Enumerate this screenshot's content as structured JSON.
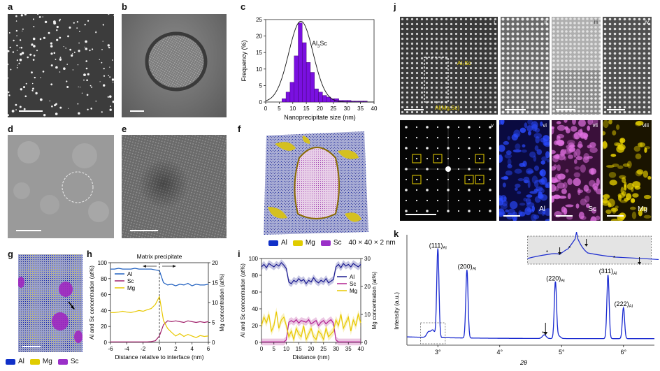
{
  "panels": {
    "a": "a",
    "b": "b",
    "c": "c",
    "d": "d",
    "e": "e",
    "f": "f",
    "g": "g",
    "h": "h",
    "i": "i",
    "j": "j",
    "k": "k"
  },
  "colors": {
    "al": "#1030c8",
    "mg": "#e0cc00",
    "sc": "#9a30c8",
    "hist": "#7a10e0",
    "xrd": "#1a2ad0",
    "annot": "#e8d000"
  },
  "panel_c": {
    "phase_label": "Al",
    "phase_sub": "3",
    "phase_label2": "Sc"
  },
  "panel_f": {
    "legend": [
      "Al",
      "Mg",
      "Sc"
    ],
    "box": "40 × 40 × 2 nm"
  },
  "panel_g": {
    "legend": [
      "Al",
      "Mg",
      "Sc"
    ]
  },
  "panel_h": {
    "top_label": "Matrix precipitate"
  },
  "panel_j": {
    "roman": [
      "i",
      "ii",
      "iii",
      "iv",
      "v",
      "vi",
      "vii",
      "viii"
    ],
    "label_al3sc": "Al₃Sc",
    "label_matrix": "Al(Mg,Sc)",
    "element_labels": [
      "Al",
      "Sc",
      "Mg"
    ]
  },
  "chart_data": [
    {
      "id": "c",
      "type": "bar",
      "title": "",
      "xlabel": "Nanoprecipitate size (nm)",
      "ylabel": "Frequency (%)",
      "xlim": [
        0,
        40
      ],
      "ylim": [
        0,
        25
      ],
      "xticks": [
        0,
        5,
        10,
        15,
        20,
        25,
        30,
        35,
        40
      ],
      "yticks": [
        0,
        5,
        10,
        15,
        20,
        25
      ],
      "bin_width": 1.5,
      "bin_starts": [
        6,
        7.5,
        9,
        10.5,
        12,
        13.5,
        15,
        16.5,
        18,
        19.5,
        21,
        22.5,
        24,
        25.5,
        27,
        28.5,
        30,
        31.5,
        33,
        34.5,
        36
      ],
      "values": [
        1,
        3,
        6,
        14,
        24,
        18,
        12,
        9,
        4,
        3,
        2,
        1.5,
        1,
        1,
        0.5,
        0.5,
        0.5,
        0.3,
        0.3,
        0.3,
        0.3
      ],
      "fit": "gaussian",
      "fit_mean": 13,
      "fit_peak": 24.5,
      "fit_sigma": 4.5
    },
    {
      "id": "h",
      "type": "line",
      "xlabel": "Distance relative to interface (nm)",
      "ylabel_left": "Al and Sc concentration (at%)",
      "ylabel_right": "Mg concentration (at%)",
      "xlim": [
        -6,
        6
      ],
      "ylim_left": [
        0,
        100
      ],
      "ylim_right": [
        0,
        20
      ],
      "xticks": [
        -6,
        -4,
        -2,
        0,
        2,
        4,
        6
      ],
      "yticks_left": [
        0,
        20,
        40,
        60,
        80,
        100
      ],
      "yticks_right": [
        0,
        5,
        10,
        15,
        20
      ],
      "x": [
        -6,
        -5.5,
        -5,
        -4.5,
        -4,
        -3.5,
        -3,
        -2.5,
        -2,
        -1.5,
        -1,
        -0.5,
        0,
        0.5,
        1,
        1.5,
        2,
        2.5,
        3,
        3.5,
        4,
        4.5,
        5,
        5.5,
        6
      ],
      "series": [
        {
          "name": "Al",
          "axis": "left",
          "color": "#2060c0",
          "values": [
            92,
            92,
            93,
            92,
            92,
            92,
            93,
            92,
            92,
            92,
            92,
            91,
            90,
            75,
            72,
            73,
            71,
            73,
            72,
            74,
            71,
            73,
            72,
            72,
            73
          ]
        },
        {
          "name": "Sc",
          "axis": "left",
          "color": "#a0206a",
          "values": [
            0.5,
            0.5,
            0.5,
            0.5,
            0.5,
            0.5,
            0.5,
            0.5,
            0.5,
            0.5,
            1,
            2,
            8,
            22,
            27,
            26,
            27,
            26,
            25,
            27,
            26,
            25,
            26,
            25,
            26
          ]
        },
        {
          "name": "Mg",
          "axis": "right",
          "color": "#e8c800",
          "values": [
            7.5,
            7.5,
            7.6,
            7.8,
            7.6,
            7.5,
            7.7,
            8.0,
            7.8,
            8.2,
            8.5,
            9.5,
            11.5,
            5.5,
            3.5,
            2.5,
            1.6,
            2.2,
            1.5,
            2.0,
            1.6,
            1.2,
            1.7,
            1.5,
            1.6
          ]
        }
      ]
    },
    {
      "id": "i",
      "type": "line",
      "xlabel": "Distance (nm)",
      "ylabel_left": "Al and Sc concentration (at%)",
      "ylabel_right": "Mg concentration (at%)",
      "xlim": [
        0,
        40
      ],
      "ylim_left": [
        0,
        100
      ],
      "ylim_right": [
        0,
        30
      ],
      "xticks": [
        0,
        5,
        10,
        15,
        20,
        25,
        30,
        35,
        40
      ],
      "yticks_left": [
        0,
        20,
        40,
        60,
        80,
        100
      ],
      "yticks_right": [
        0,
        10,
        20,
        30
      ],
      "x": [
        0,
        1,
        2,
        3,
        4,
        5,
        6,
        7,
        8,
        9,
        10,
        11,
        12,
        13,
        14,
        15,
        16,
        17,
        18,
        19,
        20,
        21,
        22,
        23,
        24,
        25,
        26,
        27,
        28,
        29,
        30,
        31,
        32,
        33,
        34,
        35,
        36,
        37,
        38,
        39,
        40
      ],
      "series": [
        {
          "name": "Al",
          "axis": "left",
          "color": "#1a1a90",
          "values": [
            90,
            93,
            89,
            94,
            92,
            90,
            93,
            91,
            95,
            92,
            88,
            72,
            70,
            74,
            72,
            76,
            73,
            75,
            70,
            74,
            72,
            77,
            73,
            71,
            74,
            72,
            76,
            71,
            73,
            75,
            90,
            93,
            89,
            94,
            91,
            93,
            90,
            94,
            92,
            90,
            93
          ]
        },
        {
          "name": "Sc",
          "axis": "left",
          "color": "#b02090",
          "values": [
            0.5,
            0.5,
            0.5,
            0.5,
            0.5,
            0.5,
            0.5,
            0.5,
            0.5,
            0.5,
            3,
            24,
            26,
            24,
            27,
            23,
            26,
            25,
            24,
            27,
            22,
            24,
            26,
            20,
            24,
            26,
            22,
            25,
            27,
            23,
            3,
            0.5,
            0.5,
            0.5,
            0.5,
            0.5,
            0.5,
            0.5,
            0.5,
            0.5,
            0.5
          ]
        },
        {
          "name": "Mg",
          "axis": "right",
          "color": "#e8c800",
          "values": [
            6,
            9,
            7,
            10,
            4,
            6,
            11,
            5,
            8,
            9,
            6,
            2,
            4,
            1,
            5,
            3,
            2,
            6,
            1,
            3,
            5,
            2,
            1,
            4,
            3,
            1,
            5,
            2,
            3,
            4,
            8,
            6,
            10,
            5,
            7,
            9,
            4,
            8,
            6,
            10,
            7
          ]
        }
      ]
    },
    {
      "id": "k",
      "type": "line",
      "xlabel": "2θ",
      "ylabel": "Intensity (a.u.)",
      "xlim": [
        2.5,
        6.5
      ],
      "xticks": [
        3,
        4,
        5,
        6
      ],
      "xtick_labels": [
        "3°",
        "4°",
        "5°",
        "6°"
      ],
      "peaks": [
        {
          "pos": 3.0,
          "height": 0.98,
          "label": "(111)",
          "sub": "Al"
        },
        {
          "pos": 3.47,
          "height": 0.75,
          "label": "(200)",
          "sub": "Al"
        },
        {
          "pos": 4.9,
          "height": 0.62,
          "label": "(220)",
          "sub": "Al"
        },
        {
          "pos": 5.75,
          "height": 0.7,
          "label": "(311)",
          "sub": "Al"
        },
        {
          "pos": 6.0,
          "height": 0.34,
          "label": "(222)",
          "sub": "Al"
        }
      ],
      "minor_peaks": [
        {
          "pos": 2.85,
          "height": 0.06
        },
        {
          "pos": 2.92,
          "height": 0.08
        },
        {
          "pos": 4.72,
          "height": 0.04
        },
        {
          "pos": 4.95,
          "height": 0.03
        }
      ]
    }
  ]
}
